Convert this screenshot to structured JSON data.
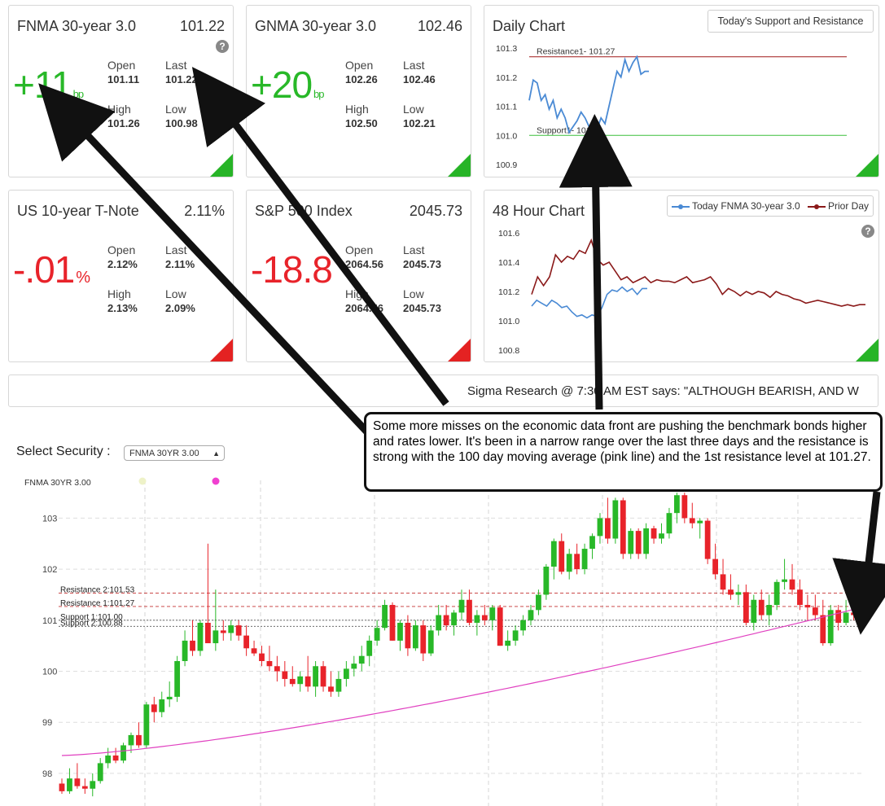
{
  "cards": [
    {
      "title": "FNMA 30-year 3.0",
      "value": "101.22",
      "change": "+11",
      "unit": "bp",
      "trend": "up",
      "open": "101.11",
      "last": "101.22",
      "high": "101.26",
      "low": "100.98"
    },
    {
      "title": "GNMA 30-year 3.0",
      "value": "102.46",
      "change": "+20",
      "unit": "bp",
      "trend": "up",
      "open": "102.26",
      "last": "102.46",
      "high": "102.50",
      "low": "102.21"
    },
    {
      "title": "US 10-year T-Note",
      "value": "2.11%",
      "change": "-.01",
      "unit": "%",
      "trend": "down",
      "open": "2.12%",
      "last": "2.11%",
      "high": "2.13%",
      "low": "2.09%"
    },
    {
      "title": "S&P 500 Index",
      "value": "2045.73",
      "change": "-18.8",
      "unit": "",
      "trend": "down",
      "open": "2064.56",
      "last": "2045.73",
      "high": "2064.56",
      "low": "2045.73"
    }
  ],
  "labels": {
    "open": "Open",
    "last": "Last",
    "high": "High",
    "low": "Low",
    "help": "?"
  },
  "daily_chart": {
    "title": "Daily Chart",
    "button": "Today's Support and Resistance",
    "resistance_label": "Resistance1- 101.27",
    "support_label": "Support1- 101.00"
  },
  "hour48_chart": {
    "title": "48 Hour Chart",
    "legend_today": "Today FNMA 30-year 3.0",
    "legend_prior": "Prior Day"
  },
  "ticker": "Sigma Research @ 7:30 AM EST says: \"ALTHOUGH BEARISH, AND W",
  "callout": "Some more misses on the economic data front are pushing the benchmark bonds higher and rates lower.  It's been in a narrow range over the last three days and the resistance is strong with the 100 day moving average (pink line) and the 1st resistance level at 101.27.",
  "security": {
    "label": "Select Security :",
    "selected": "FNMA 30YR 3.00"
  },
  "main_chart": {
    "legend": "FNMA 30YR 3.00",
    "levels": [
      "Resistance 2:101.53",
      "Resistance 1:101.27",
      "Support 1:101.00",
      "Support 2:100.88"
    ]
  },
  "colors": {
    "up": "#28b828",
    "down": "#e8232a",
    "today": "#4a8ad4",
    "prior": "#8b1a1a",
    "ma": "#e040c0"
  },
  "chart_data": [
    {
      "type": "line",
      "title": "Daily Chart",
      "y_ticks": [
        "101.3",
        "101.2",
        "101.1",
        "101.0",
        "100.9"
      ],
      "ylim": [
        100.9,
        101.3
      ],
      "resistance": 101.27,
      "support": 101.0,
      "series": [
        {
          "values": [
            101.12,
            101.19,
            101.18,
            101.12,
            101.14,
            101.09,
            101.12,
            101.06,
            101.09,
            101.06,
            101.01,
            101.03,
            101.05,
            101.08,
            101.06,
            101.03,
            101.04,
            101.02,
            101.06,
            101.04,
            101.1,
            101.16,
            101.22,
            101.2,
            101.26,
            101.22,
            101.25,
            101.27,
            101.21,
            101.22,
            101.22
          ]
        }
      ]
    },
    {
      "type": "line",
      "title": "48 Hour Chart",
      "y_ticks": [
        "101.6",
        "101.4",
        "101.2",
        "101.0",
        "100.8"
      ],
      "ylim": [
        100.8,
        101.6
      ],
      "series": [
        {
          "name": "Today FNMA 30-year 3.0",
          "values": [
            101.1,
            101.14,
            101.12,
            101.1,
            101.14,
            101.12,
            101.09,
            101.1,
            101.06,
            101.03,
            101.04,
            101.02,
            101.04,
            101.03,
            101.09,
            101.18,
            101.21,
            101.2,
            101.23,
            101.2,
            101.22,
            101.18,
            101.22,
            101.22
          ]
        },
        {
          "name": "Prior Day",
          "values": [
            101.18,
            101.3,
            101.24,
            101.3,
            101.45,
            101.4,
            101.44,
            101.42,
            101.48,
            101.46,
            101.55,
            101.42,
            101.38,
            101.4,
            101.34,
            101.28,
            101.3,
            101.26,
            101.28,
            101.3,
            101.26,
            101.28,
            101.27,
            101.27,
            101.26,
            101.28,
            101.3,
            101.26,
            101.27,
            101.28,
            101.3,
            101.25,
            101.18,
            101.22,
            101.2,
            101.17,
            101.2,
            101.18,
            101.2,
            101.19,
            101.16,
            101.2,
            101.18,
            101.17,
            101.15,
            101.14,
            101.12,
            101.13,
            101.14,
            101.13,
            101.12,
            101.11,
            101.1,
            101.11,
            101.1,
            101.11,
            101.11
          ]
        }
      ]
    },
    {
      "type": "candlestick",
      "title": "FNMA 30YR 3.00",
      "y_ticks": [
        "103",
        "102",
        "101",
        "100",
        "99",
        "98"
      ],
      "ylim": [
        97.6,
        103.9
      ],
      "levels": [
        101.53,
        101.27,
        101.0,
        100.88
      ],
      "ohlc": [
        [
          97.8,
          97.9,
          97.6,
          97.65
        ],
        [
          97.65,
          98.1,
          97.6,
          97.9
        ],
        [
          97.9,
          98.2,
          97.7,
          97.75
        ],
        [
          97.75,
          97.9,
          97.6,
          97.7
        ],
        [
          97.7,
          98.0,
          97.55,
          97.85
        ],
        [
          97.85,
          98.3,
          97.8,
          98.2
        ],
        [
          98.2,
          98.5,
          98.1,
          98.35
        ],
        [
          98.35,
          98.5,
          98.2,
          98.25
        ],
        [
          98.25,
          98.6,
          98.2,
          98.55
        ],
        [
          98.55,
          98.8,
          98.4,
          98.75
        ],
        [
          98.75,
          99.0,
          98.5,
          98.55
        ],
        [
          98.55,
          99.4,
          98.5,
          99.35
        ],
        [
          99.35,
          99.5,
          99.0,
          99.2
        ],
        [
          99.2,
          99.6,
          99.1,
          99.45
        ],
        [
          99.45,
          99.8,
          99.3,
          99.5
        ],
        [
          99.5,
          100.3,
          99.4,
          100.2
        ],
        [
          100.2,
          100.8,
          100.1,
          100.6
        ],
        [
          100.6,
          101.0,
          100.3,
          100.4
        ],
        [
          100.4,
          101.0,
          100.3,
          100.95
        ],
        [
          100.95,
          102.5,
          100.6,
          100.55
        ],
        [
          100.55,
          101.6,
          100.4,
          100.8
        ],
        [
          100.8,
          101.0,
          100.6,
          100.75
        ],
        [
          100.75,
          101.0,
          100.6,
          100.9
        ],
        [
          100.9,
          101.0,
          100.6,
          100.7
        ],
        [
          100.7,
          100.9,
          100.3,
          100.45
        ],
        [
          100.45,
          100.6,
          100.3,
          100.35
        ],
        [
          100.35,
          100.5,
          100.1,
          100.2
        ],
        [
          100.2,
          100.5,
          100.0,
          100.1
        ],
        [
          100.1,
          100.3,
          99.8,
          100.0
        ],
        [
          100.0,
          100.2,
          99.7,
          99.85
        ],
        [
          99.85,
          100.1,
          99.7,
          99.75
        ],
        [
          99.75,
          100.0,
          99.6,
          99.9
        ],
        [
          99.9,
          100.3,
          99.6,
          99.7
        ],
        [
          99.7,
          100.2,
          99.5,
          100.1
        ],
        [
          100.1,
          100.2,
          99.6,
          99.7
        ],
        [
          99.7,
          100.0,
          99.5,
          99.6
        ],
        [
          99.6,
          100.0,
          99.5,
          99.85
        ],
        [
          99.85,
          100.2,
          99.7,
          100.05
        ],
        [
          100.05,
          100.3,
          99.9,
          100.15
        ],
        [
          100.15,
          100.5,
          100.0,
          100.3
        ],
        [
          100.3,
          100.7,
          100.1,
          100.6
        ],
        [
          100.6,
          101.0,
          100.5,
          100.85
        ],
        [
          100.85,
          101.4,
          100.8,
          101.3
        ],
        [
          101.3,
          101.35,
          100.6,
          100.6
        ],
        [
          100.6,
          101.0,
          100.4,
          100.95
        ],
        [
          100.95,
          101.1,
          100.3,
          100.45
        ],
        [
          100.45,
          101.0,
          100.4,
          100.9
        ],
        [
          100.9,
          101.0,
          100.2,
          100.35
        ],
        [
          100.35,
          100.9,
          100.3,
          100.8
        ],
        [
          100.8,
          101.3,
          100.7,
          101.1
        ],
        [
          101.1,
          101.3,
          100.8,
          100.9
        ],
        [
          100.9,
          101.2,
          100.7,
          101.15
        ],
        [
          101.15,
          101.6,
          101.0,
          101.4
        ],
        [
          101.4,
          101.6,
          100.9,
          100.95
        ],
        [
          100.95,
          101.2,
          100.7,
          101.1
        ],
        [
          101.1,
          101.3,
          100.9,
          101.0
        ],
        [
          101.0,
          101.3,
          100.8,
          101.25
        ],
        [
          101.25,
          101.3,
          100.5,
          100.5
        ],
        [
          100.5,
          100.8,
          100.4,
          100.6
        ],
        [
          100.6,
          100.9,
          100.5,
          100.8
        ],
        [
          100.8,
          101.1,
          100.7,
          101.0
        ],
        [
          101.0,
          101.3,
          100.9,
          101.2
        ],
        [
          101.2,
          101.6,
          101.1,
          101.5
        ],
        [
          101.5,
          102.1,
          101.4,
          102.05
        ],
        [
          102.05,
          102.6,
          101.8,
          102.55
        ],
        [
          102.55,
          102.7,
          101.9,
          101.95
        ],
        [
          101.95,
          102.4,
          101.8,
          102.3
        ],
        [
          102.3,
          102.5,
          101.9,
          102.0
        ],
        [
          102.0,
          102.5,
          101.9,
          102.4
        ],
        [
          102.4,
          102.7,
          102.2,
          102.65
        ],
        [
          102.65,
          103.1,
          102.5,
          103.0
        ],
        [
          103.0,
          103.4,
          102.5,
          102.6
        ],
        [
          102.6,
          103.4,
          102.5,
          103.35
        ],
        [
          103.35,
          103.4,
          102.2,
          102.3
        ],
        [
          102.3,
          102.8,
          102.2,
          102.75
        ],
        [
          102.75,
          102.8,
          102.2,
          102.3
        ],
        [
          102.3,
          102.9,
          102.2,
          102.8
        ],
        [
          102.8,
          102.85,
          102.5,
          102.6
        ],
        [
          102.6,
          102.9,
          102.5,
          102.7
        ],
        [
          102.7,
          103.2,
          102.6,
          103.1
        ],
        [
          103.1,
          103.5,
          102.9,
          103.45
        ],
        [
          103.45,
          103.5,
          102.9,
          103.0
        ],
        [
          103.0,
          103.3,
          102.8,
          102.9
        ],
        [
          102.9,
          103.0,
          102.6,
          102.95
        ],
        [
          102.95,
          103.0,
          102.1,
          102.2
        ],
        [
          102.2,
          102.5,
          101.8,
          101.9
        ],
        [
          101.9,
          102.2,
          101.5,
          101.6
        ],
        [
          101.6,
          101.9,
          101.4,
          101.5
        ],
        [
          101.5,
          101.7,
          101.3,
          101.55
        ],
        [
          101.55,
          101.7,
          100.9,
          100.95
        ],
        [
          100.95,
          101.5,
          100.8,
          101.4
        ],
        [
          101.4,
          101.6,
          101.0,
          101.1
        ],
        [
          101.1,
          101.5,
          100.9,
          101.3
        ],
        [
          101.3,
          101.8,
          101.2,
          101.75
        ],
        [
          101.75,
          102.2,
          101.6,
          101.8
        ],
        [
          101.8,
          102.1,
          101.5,
          101.6
        ],
        [
          101.6,
          101.8,
          101.2,
          101.3
        ],
        [
          101.3,
          101.5,
          101.0,
          101.25
        ],
        [
          101.25,
          101.5,
          101.0,
          101.1
        ],
        [
          101.1,
          101.4,
          100.5,
          100.55
        ],
        [
          100.55,
          101.3,
          100.5,
          101.2
        ],
        [
          101.2,
          101.3,
          100.8,
          100.95
        ],
        [
          100.95,
          101.4,
          100.9,
          101.15
        ],
        [
          101.15,
          101.5,
          101.0,
          101.1
        ],
        [
          101.1,
          101.3,
          100.9,
          101.25
        ]
      ]
    }
  ]
}
